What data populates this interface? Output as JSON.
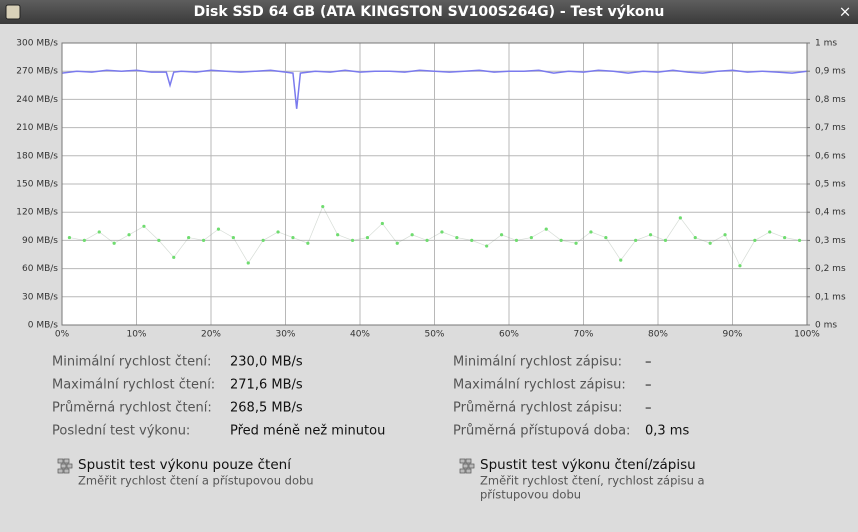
{
  "window": {
    "title": "Disk SSD 64 GB (ATA KINGSTON SV100S264G) - Test výkonu",
    "close": "×"
  },
  "chart_data": {
    "type": "line",
    "xlim": [
      0,
      100
    ],
    "xticks": [
      {
        "value": 0,
        "label": "0%"
      },
      {
        "value": 10,
        "label": "10%"
      },
      {
        "value": 20,
        "label": "20%"
      },
      {
        "value": 30,
        "label": "30%"
      },
      {
        "value": 40,
        "label": "40%"
      },
      {
        "value": 50,
        "label": "50%"
      },
      {
        "value": 60,
        "label": "60%"
      },
      {
        "value": 70,
        "label": "70%"
      },
      {
        "value": 80,
        "label": "80%"
      },
      {
        "value": 90,
        "label": "90%"
      },
      {
        "value": 100,
        "label": "100%"
      }
    ],
    "ylim": [
      0,
      300
    ],
    "yticks": [
      {
        "value": 0,
        "label": "0 MB/s"
      },
      {
        "value": 30,
        "label": "30 MB/s"
      },
      {
        "value": 60,
        "label": "60 MB/s"
      },
      {
        "value": 90,
        "label": "90 MB/s"
      },
      {
        "value": 120,
        "label": "120 MB/s"
      },
      {
        "value": 150,
        "label": "150 MB/s"
      },
      {
        "value": 180,
        "label": "180 MB/s"
      },
      {
        "value": 210,
        "label": "210 MB/s"
      },
      {
        "value": 240,
        "label": "240 MB/s"
      },
      {
        "value": 270,
        "label": "270 MB/s"
      },
      {
        "value": 300,
        "label": "300 MB/s"
      }
    ],
    "y2lim": [
      0,
      1
    ],
    "y2ticks": [
      {
        "value": 0,
        "label": "0 ms"
      },
      {
        "value": 0.1,
        "label": "0,1 ms"
      },
      {
        "value": 0.2,
        "label": "0,2 ms"
      },
      {
        "value": 0.3,
        "label": "0,3 ms"
      },
      {
        "value": 0.4,
        "label": "0,4 ms"
      },
      {
        "value": 0.5,
        "label": "0,5 ms"
      },
      {
        "value": 0.6,
        "label": "0,6 ms"
      },
      {
        "value": 0.7,
        "label": "0,7 ms"
      },
      {
        "value": 0.8,
        "label": "0,8 ms"
      },
      {
        "value": 0.9,
        "label": "0,9 ms"
      },
      {
        "value": 1,
        "label": "1 ms"
      }
    ],
    "grid": true,
    "series": [
      {
        "color": "#7a7aee",
        "style": "line",
        "x": [
          0,
          2,
          4,
          6,
          8,
          10,
          12,
          14,
          14.5,
          15,
          16,
          18,
          20,
          22,
          24,
          26,
          28,
          30,
          31,
          31.5,
          32,
          34,
          36,
          38,
          40,
          42,
          44,
          46,
          48,
          50,
          52,
          54,
          56,
          58,
          60,
          62,
          64,
          66,
          68,
          70,
          72,
          74,
          76,
          78,
          80,
          82,
          84,
          86,
          88,
          90,
          92,
          94,
          96,
          98,
          100
        ],
        "values": [
          268,
          270,
          269,
          271,
          270,
          271,
          269,
          269,
          255,
          269,
          270,
          269,
          271,
          270,
          269,
          270,
          271,
          269,
          268,
          230,
          268,
          270,
          269,
          271,
          269,
          270,
          270,
          269,
          271,
          270,
          269,
          270,
          271,
          269,
          270,
          270,
          271,
          268,
          270,
          269,
          271,
          270,
          268,
          270,
          269,
          271,
          269,
          268,
          270,
          271,
          269,
          270,
          269,
          268,
          270
        ]
      },
      {
        "color": "#6fdc6f",
        "style": "scatter",
        "axis": "y2",
        "x": [
          1,
          3,
          5,
          7,
          9,
          11,
          13,
          15,
          17,
          19,
          21,
          23,
          25,
          27,
          29,
          31,
          33,
          35,
          37,
          39,
          41,
          43,
          45,
          47,
          49,
          51,
          53,
          55,
          57,
          59,
          61,
          63,
          65,
          67,
          69,
          71,
          73,
          75,
          77,
          79,
          81,
          83,
          85,
          87,
          89,
          91,
          93,
          95,
          97,
          99
        ],
        "values": [
          0.31,
          0.3,
          0.33,
          0.29,
          0.32,
          0.35,
          0.3,
          0.24,
          0.31,
          0.3,
          0.34,
          0.31,
          0.22,
          0.3,
          0.33,
          0.31,
          0.29,
          0.42,
          0.32,
          0.3,
          0.31,
          0.36,
          0.29,
          0.32,
          0.3,
          0.33,
          0.31,
          0.3,
          0.28,
          0.32,
          0.3,
          0.31,
          0.34,
          0.3,
          0.29,
          0.33,
          0.31,
          0.23,
          0.3,
          0.32,
          0.3,
          0.38,
          0.31,
          0.29,
          0.32,
          0.21,
          0.3,
          0.33,
          0.31,
          0.3
        ]
      }
    ]
  },
  "stats": {
    "left": [
      [
        "Minimální rychlost čtení:",
        "230,0 MB/s"
      ],
      [
        "Maximální rychlost čtení:",
        "271,6 MB/s"
      ],
      [
        "Průměrná rychlost čtení:",
        "268,5 MB/s"
      ],
      [
        "Poslední test výkonu:",
        "Před méně než minutou"
      ]
    ],
    "right": [
      [
        "Minimální rychlost zápisu:",
        "–"
      ],
      [
        "Maximální rychlost zápisu:",
        "–"
      ],
      [
        "Průměrná rychlost zápisu:",
        "–"
      ],
      [
        "Průměrná přístupová doba:",
        "0,3 ms"
      ]
    ]
  },
  "buttons": [
    {
      "label": "Spustit test výkonu pouze čtení",
      "description": [
        "Změřit rychlost čtení a přístupovou dobu"
      ]
    },
    {
      "label": "Spustit test výkonu čtení/zápisu",
      "description": [
        "Změřit rychlost čtení, rychlost zápisu a",
        "přístupovou dobu"
      ]
    }
  ]
}
